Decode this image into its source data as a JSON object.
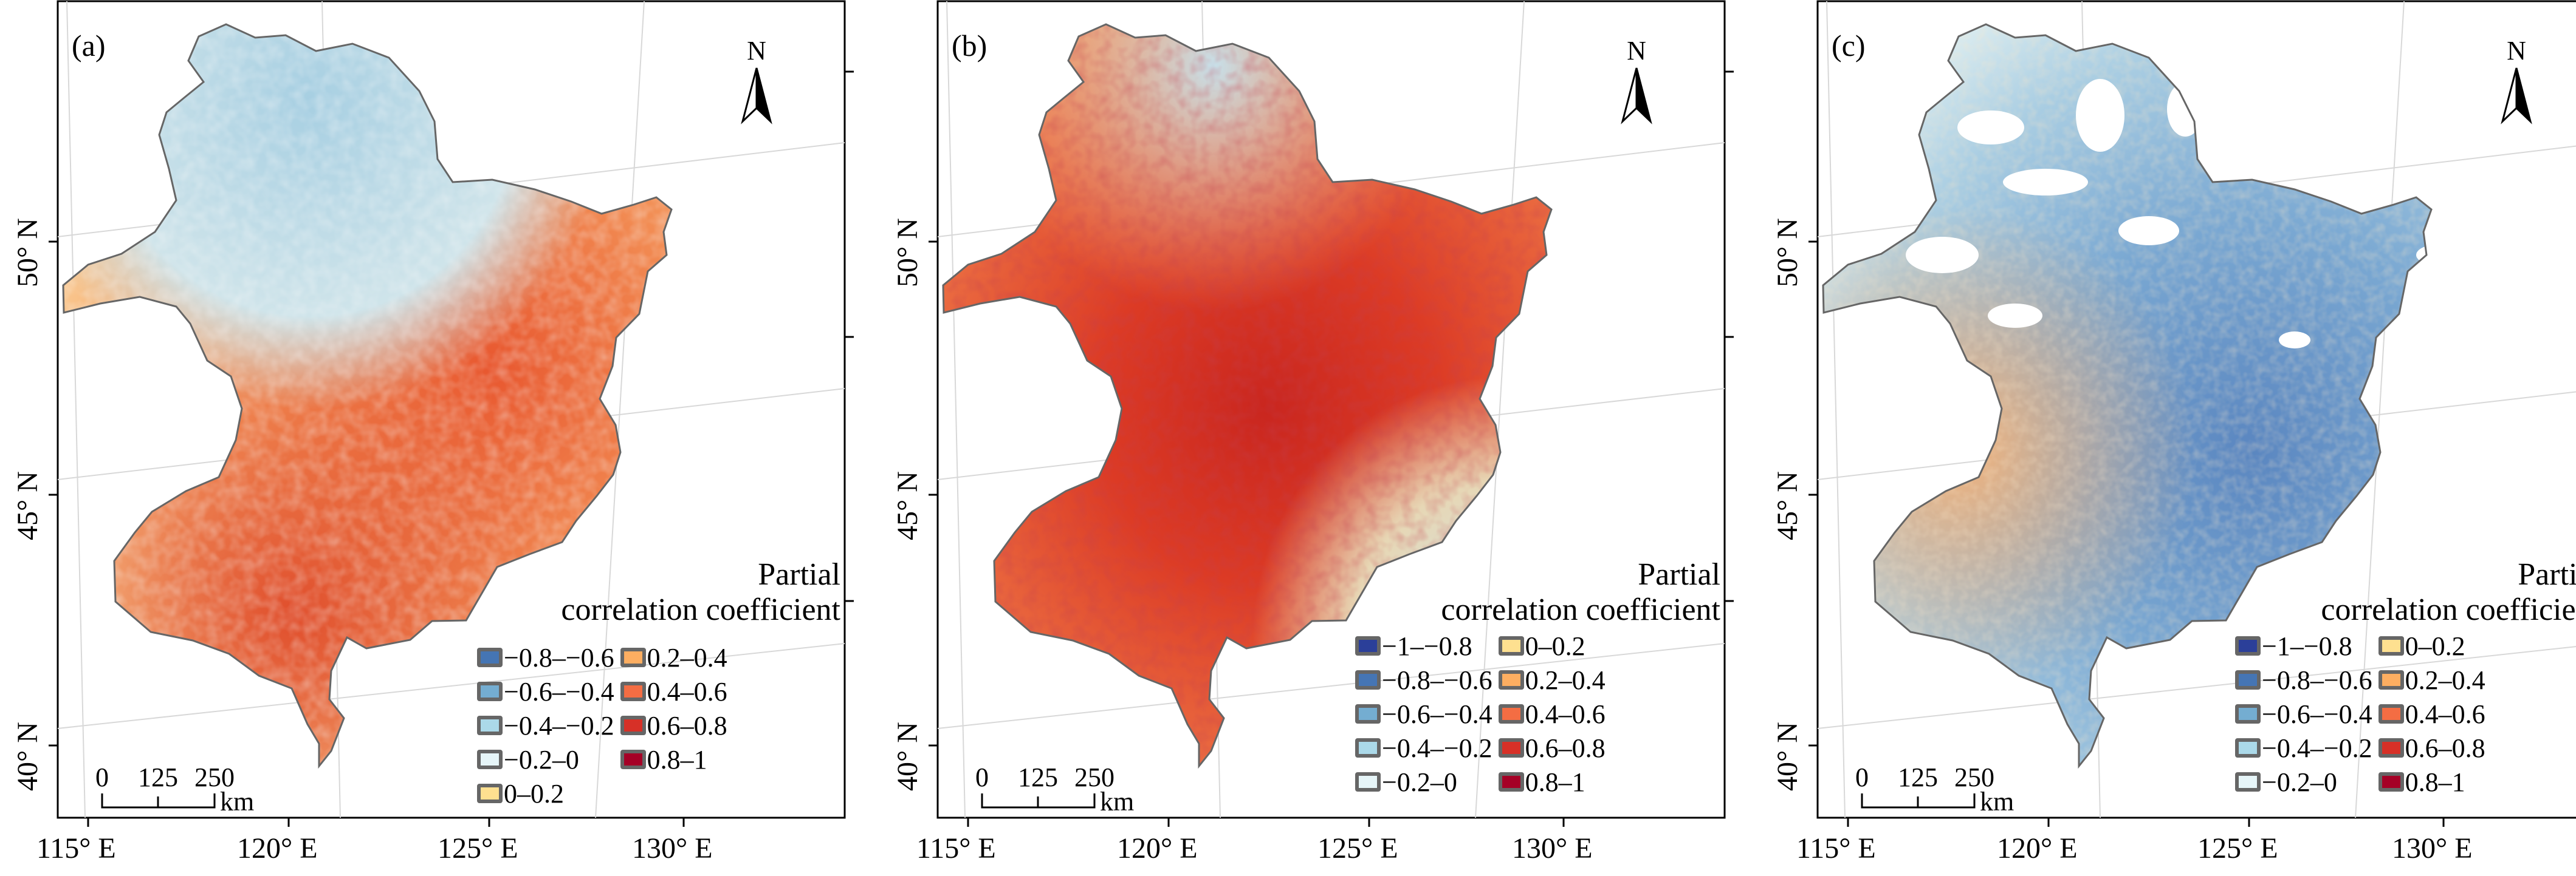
{
  "colors": {
    "n1_08": "#2b3f99",
    "n08_06": "#4575b4",
    "n06_04": "#74add1",
    "n04_02": "#abd9e9",
    "n02_0": "#e6f5f8",
    "p0_02": "#fee090",
    "p02_04": "#fdae61",
    "p04_06": "#f46d43",
    "p06_08": "#d73027",
    "p08_1": "#a50026",
    "frame": "#000000",
    "boundary": "#555555",
    "graticule": "#cccccc"
  },
  "axes": {
    "x_ticks": [
      "115° E",
      "120° E",
      "125° E",
      "130° E"
    ],
    "y_ticks": [
      "40° N",
      "45° N",
      "50° N"
    ]
  },
  "north_label": "N",
  "scale_bar": {
    "values": [
      "0",
      "125",
      "250"
    ],
    "unit": "km"
  },
  "panels": [
    {
      "id": "a",
      "label": "(a)",
      "legend_title_line1": "Partial",
      "legend_title_line2": "correlation coefficient",
      "legend_columns": [
        [
          {
            "label": "−0.8–−0.6",
            "color_key": "n08_06"
          },
          {
            "label": "−0.6–−0.4",
            "color_key": "n06_04"
          },
          {
            "label": "−0.4–−0.2",
            "color_key": "n04_02"
          },
          {
            "label": "−0.2–0",
            "color_key": "n02_0"
          },
          {
            "label": "0–0.2",
            "color_key": "p0_02"
          }
        ],
        [
          {
            "label": "0.2–0.4",
            "color_key": "p02_04"
          },
          {
            "label": "0.4–0.6",
            "color_key": "p04_06"
          },
          {
            "label": "0.6–0.8",
            "color_key": "p06_08"
          },
          {
            "label": "0.8–1",
            "color_key": "p08_1"
          }
        ]
      ]
    },
    {
      "id": "b",
      "label": "(b)",
      "legend_title_line1": "Partial",
      "legend_title_line2": "correlation coefficient",
      "legend_columns": [
        [
          {
            "label": "−1–−0.8",
            "color_key": "n1_08"
          },
          {
            "label": "−0.8–−0.6",
            "color_key": "n08_06"
          },
          {
            "label": "−0.6–−0.4",
            "color_key": "n06_04"
          },
          {
            "label": "−0.4–−0.2",
            "color_key": "n04_02"
          },
          {
            "label": "−0.2–0",
            "color_key": "n02_0"
          }
        ],
        [
          {
            "label": "0–0.2",
            "color_key": "p0_02"
          },
          {
            "label": "0.2–0.4",
            "color_key": "p02_04"
          },
          {
            "label": "0.4–0.6",
            "color_key": "p04_06"
          },
          {
            "label": "0.6–0.8",
            "color_key": "p06_08"
          },
          {
            "label": "0.8–1",
            "color_key": "p08_1"
          }
        ]
      ]
    },
    {
      "id": "c",
      "label": "(c)",
      "legend_title_line1": "Partial",
      "legend_title_line2": "correlation coefficient",
      "legend_columns": [
        [
          {
            "label": "−1–−0.8",
            "color_key": "n1_08"
          },
          {
            "label": "−0.8–−0.6",
            "color_key": "n08_06"
          },
          {
            "label": "−0.6–−0.4",
            "color_key": "n06_04"
          },
          {
            "label": "−0.4–−0.2",
            "color_key": "n04_02"
          },
          {
            "label": "−0.2–0",
            "color_key": "n02_0"
          }
        ],
        [
          {
            "label": "0–0.2",
            "color_key": "p0_02"
          },
          {
            "label": "0.2–0.4",
            "color_key": "p02_04"
          },
          {
            "label": "0.4–0.6",
            "color_key": "p04_06"
          },
          {
            "label": "0.6–0.8",
            "color_key": "p06_08"
          },
          {
            "label": "0.8–1",
            "color_key": "p08_1"
          }
        ]
      ]
    }
  ]
}
